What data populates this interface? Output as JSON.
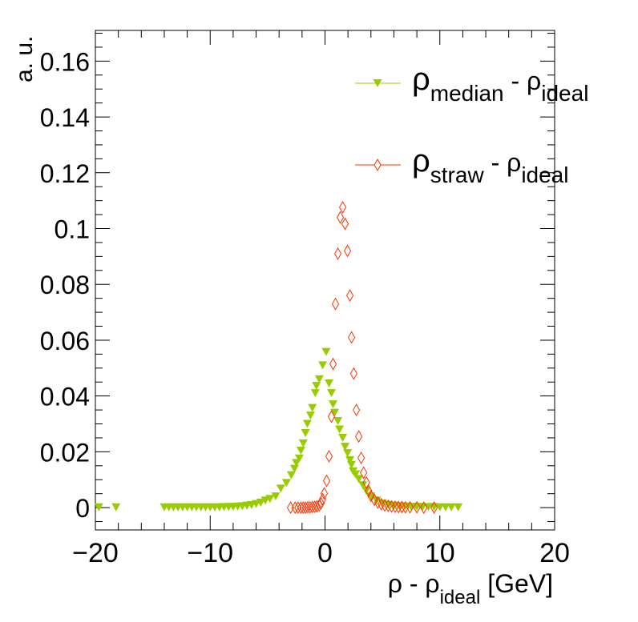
{
  "chart_data": {
    "type": "scatter",
    "title": "",
    "xlabel": {
      "main": "ρ - ρ",
      "sub": "ideal",
      "unit": " [GeV]"
    },
    "ylabel": "a. u.",
    "xlim": [
      -20,
      20
    ],
    "ylim": [
      -0.008,
      0.171
    ],
    "xticks": [
      -20,
      -10,
      0,
      10,
      20
    ],
    "xtick_labels": [
      "−20",
      "−10",
      "0",
      "10",
      "20"
    ],
    "yticks": [
      0,
      0.02,
      0.04,
      0.06,
      0.08,
      0.1,
      0.12,
      0.14,
      0.16
    ],
    "ytick_labels": [
      "0",
      "0.02",
      "0.04",
      "0.06",
      "0.08",
      "0.1",
      "0.12",
      "0.14",
      "0.16"
    ],
    "grid": false,
    "legend_position": "top-right",
    "series": [
      {
        "name": "median",
        "legend": {
          "rho": "ρ",
          "sub1": "median",
          "mid": " - ρ",
          "sub2": "ideal"
        },
        "color": "#99cc00",
        "marker": "triangle-down",
        "x": [
          -19.7,
          -18.2,
          -14,
          -13.6,
          -13.2,
          -12.8,
          -12.4,
          -12,
          -11.6,
          -11.2,
          -10.8,
          -10.4,
          -10,
          -9.6,
          -9.2,
          -8.8,
          -8.4,
          -8,
          -7.6,
          -7.2,
          -6.8,
          -6.4,
          -6,
          -5.6,
          -5.2,
          -4.8,
          -4.3,
          -3.85,
          -3.36,
          -2.94,
          -2.66,
          -2.5,
          -2.24,
          -2.1,
          -1.9,
          -1.7,
          -1.54,
          -1.26,
          -1.1,
          -0.85,
          -0.75,
          -0.5,
          -0.2,
          0.1,
          0.35,
          0.56,
          0.7,
          0.84,
          1.12,
          1.26,
          1.54,
          1.75,
          1.96,
          2.17,
          2.3,
          2.45,
          2.66,
          2.94,
          3.3,
          3.6,
          4.0,
          4.5,
          5.0,
          5.5,
          6.0,
          6.5,
          7.0,
          7.5,
          8.0,
          8.5,
          9.0,
          9.5,
          10.0,
          10.5,
          11.0,
          11.6
        ],
        "y": [
          0.0001,
          0.0001,
          0.0001,
          0.0001,
          0.0001,
          0.0001,
          0.0001,
          0.0001,
          0.0001,
          0.0001,
          0.0001,
          0.0001,
          0.0001,
          0.0001,
          0.0001,
          0.0002,
          0.0002,
          0.0003,
          0.0004,
          0.0005,
          0.0007,
          0.0009,
          0.0013,
          0.0018,
          0.0025,
          0.0031,
          0.004,
          0.0068,
          0.0088,
          0.0116,
          0.0139,
          0.016,
          0.0176,
          0.0204,
          0.023,
          0.0267,
          0.03,
          0.033,
          0.0357,
          0.041,
          0.0436,
          0.046,
          0.051,
          0.0558,
          0.0445,
          0.041,
          0.037,
          0.034,
          0.031,
          0.028,
          0.025,
          0.0218,
          0.0195,
          0.017,
          0.0153,
          0.013,
          0.0119,
          0.0102,
          0.008,
          0.006,
          0.004,
          0.0025,
          0.0015,
          0.001,
          0.0007,
          0.0005,
          0.0004,
          0.0003,
          0.0003,
          0.0002,
          0.0002,
          0.0002,
          0.0001,
          0.0001,
          0.0001,
          0.0001
        ]
      },
      {
        "name": "straw",
        "legend": {
          "rho": "ρ",
          "sub1": "straw",
          "mid": " - ρ",
          "sub2": "ideal"
        },
        "color": "#ff3300",
        "marker": "open-diamond",
        "x": [
          -3.0,
          -2.6,
          -2.35,
          -2.1,
          -1.9,
          -1.7,
          -1.5,
          -1.3,
          -1.1,
          -0.9,
          -0.7,
          -0.5,
          -0.35,
          -0.21,
          -0.07,
          0.14,
          0.35,
          0.56,
          0.7,
          0.91,
          1.12,
          1.33,
          1.54,
          1.75,
          1.96,
          2.17,
          2.31,
          2.5,
          2.73,
          2.94,
          3.15,
          3.36,
          3.6,
          3.8,
          4.0,
          4.3,
          4.6,
          4.9,
          5.2,
          5.5,
          5.8,
          6.1,
          6.4,
          6.7,
          7.0,
          7.4,
          8.0,
          8.6,
          9.5
        ],
        "y": [
          0.0,
          0.0,
          0.0,
          0.0,
          0.0,
          0.0,
          0.0001,
          0.0001,
          0.0002,
          0.0003,
          0.0005,
          0.0008,
          0.0015,
          0.003,
          0.0051,
          0.0096,
          0.0184,
          0.0326,
          0.0515,
          0.073,
          0.091,
          0.104,
          0.1076,
          0.1017,
          0.092,
          0.076,
          0.061,
          0.048,
          0.035,
          0.0255,
          0.0178,
          0.0125,
          0.009,
          0.006,
          0.0042,
          0.0028,
          0.0018,
          0.0012,
          0.0008,
          0.0006,
          0.0004,
          0.0003,
          0.0002,
          0.0002,
          0.0001,
          0.0001,
          0.0001,
          0.0,
          0.0
        ]
      }
    ]
  }
}
